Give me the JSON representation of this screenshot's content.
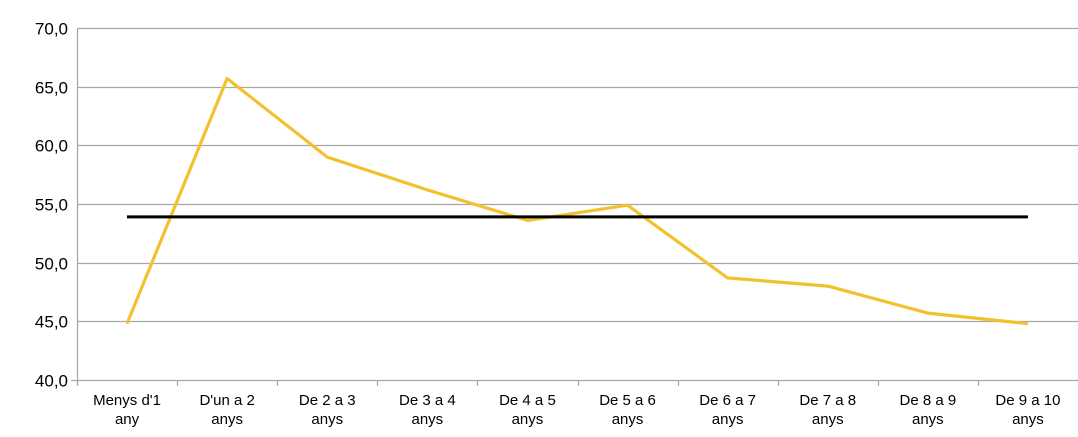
{
  "chart_data": {
    "type": "line",
    "title": "",
    "xlabel": "",
    "ylabel": "",
    "categories": [
      [
        "Menys d'1",
        "any"
      ],
      [
        "D'un a 2",
        "anys"
      ],
      [
        "De 2 a 3",
        "anys"
      ],
      [
        "De 3 a 4",
        "anys"
      ],
      [
        "De 4 a 5",
        "anys"
      ],
      [
        "De 5 a 6",
        "anys"
      ],
      [
        "De 6 a 7",
        "anys"
      ],
      [
        "De 7 a 8",
        "anys"
      ],
      [
        "De 8 a 9",
        "anys"
      ],
      [
        "De 9 a 10",
        "anys"
      ]
    ],
    "series": [
      {
        "values": [
          44.8,
          65.7,
          59.0,
          56.2,
          53.6,
          54.9,
          48.7,
          48.0,
          45.7,
          44.8
        ],
        "color": "#F2C12E"
      },
      {
        "values": [
          53.9,
          53.9,
          53.9,
          53.9,
          53.9,
          53.9,
          53.9,
          53.9,
          53.9,
          53.9
        ],
        "color": "#000000"
      }
    ],
    "ylim": [
      40,
      70
    ],
    "yticks": [
      {
        "value": 40,
        "label": "40,0"
      },
      {
        "value": 45,
        "label": "45,0"
      },
      {
        "value": 50,
        "label": "50,0"
      },
      {
        "value": 55,
        "label": "55,0"
      },
      {
        "value": 60,
        "label": "60,0"
      },
      {
        "value": 65,
        "label": "65,0"
      },
      {
        "value": 70,
        "label": "70,0"
      }
    ],
    "grid": true,
    "legend": "none",
    "colors": {
      "grid": "#A6A6A6",
      "axis": "#A6A6A6",
      "text": "#000000"
    }
  }
}
